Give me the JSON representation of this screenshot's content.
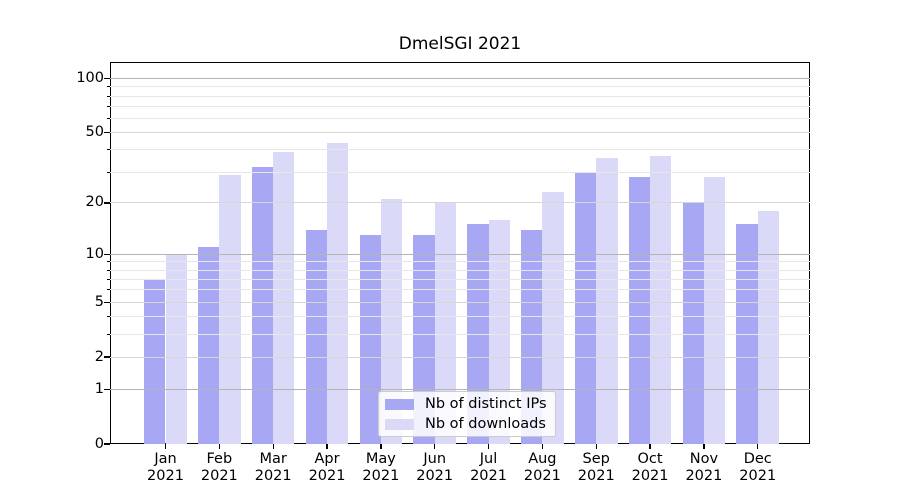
{
  "chart_data": {
    "type": "bar",
    "title": "DmelSGI 2021",
    "year": "2021",
    "categories": [
      "Jan",
      "Feb",
      "Mar",
      "Apr",
      "May",
      "Jun",
      "Jul",
      "Aug",
      "Sep",
      "Oct",
      "Nov",
      "Dec"
    ],
    "series": [
      {
        "name": "Nb of distinct IPs",
        "key": "distinct-ips",
        "color": "#a7a7f3",
        "values": [
          7,
          11,
          32,
          14,
          13,
          13,
          15,
          14,
          30,
          28,
          20,
          15
        ]
      },
      {
        "name": "Nb of downloads",
        "key": "downloads",
        "color": "#dadaf8",
        "values": [
          10,
          29,
          39,
          44,
          21,
          20,
          16,
          23,
          36,
          37,
          28,
          18
        ]
      }
    ],
    "yscale": "log1p",
    "ylim": [
      0,
      124
    ],
    "yticks": [
      0,
      1,
      2,
      5,
      10,
      20,
      50,
      100
    ],
    "yticks_minor": [
      3,
      4,
      6,
      7,
      8,
      9,
      30,
      40,
      60,
      70,
      80,
      90
    ],
    "grid": {
      "major": [
        1,
        10,
        100
      ],
      "mid": [
        2,
        5,
        20,
        50
      ],
      "minor": [
        3,
        4,
        6,
        7,
        8,
        9,
        30,
        40,
        60,
        70,
        80,
        90
      ]
    },
    "legend_position": "lower center",
    "colors": {
      "grid_major": "#b4b4b4",
      "grid_mid": "#d6d6d6",
      "grid_minor": "#e7e7e7",
      "axis": "#000000"
    }
  }
}
